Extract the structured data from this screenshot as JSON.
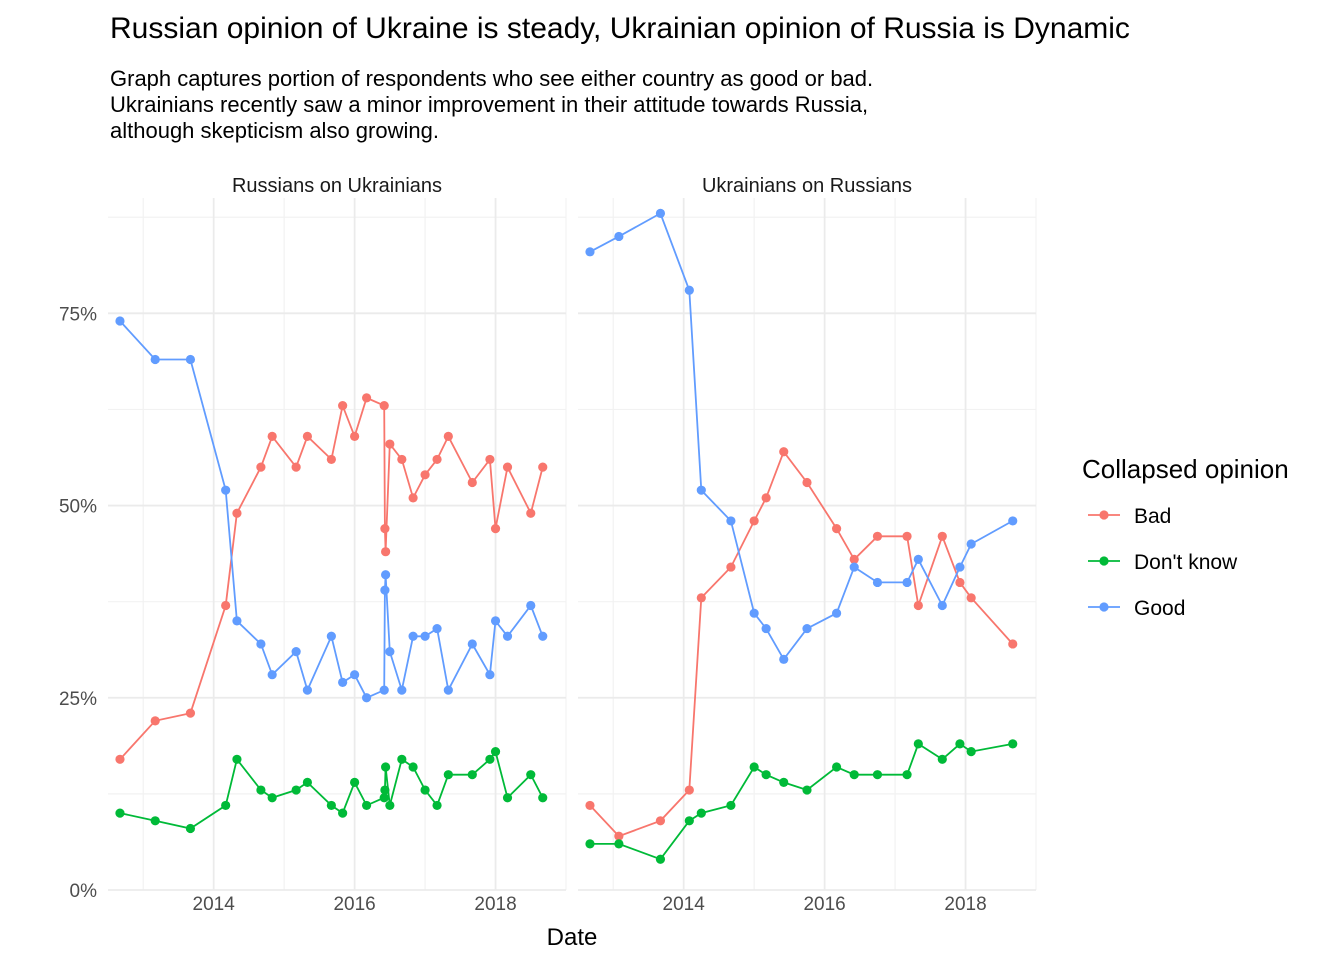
{
  "title": "Russian opinion of Ukraine is steady, Ukrainian opinion of Russia is Dynamic",
  "subtitle": "Graph captures portion of respondents who see either country as good or bad.\nUkrainians recently saw a minor improvement in their attitude towards Russia,\nalthough skepticism also growing.",
  "chart_data": {
    "type": "line",
    "xlabel": "Date",
    "ylabel": "",
    "xlim": [
      2012.5,
      2019.0
    ],
    "ylim": [
      0,
      0.9
    ],
    "x_ticks": [
      2014,
      2016,
      2018
    ],
    "x_tick_labels": [
      "2014",
      "2016",
      "2018"
    ],
    "y_ticks": [
      0,
      0.25,
      0.5,
      0.75
    ],
    "y_tick_labels": [
      "0%",
      "25%",
      "50%",
      "75%"
    ],
    "grid": true,
    "legend": {
      "title": "Collapsed opinion",
      "position": "right",
      "entries": [
        {
          "name": "Bad",
          "color": "#F8766D"
        },
        {
          "name": "Don't know",
          "color": "#00BA38"
        },
        {
          "name": "Good",
          "color": "#619CFF"
        }
      ]
    },
    "panels": [
      {
        "label": "Russians on Ukrainians",
        "series": [
          {
            "name": "Bad",
            "color": "#F8766D",
            "points": [
              [
                2012.67,
                0.17
              ],
              [
                2013.17,
                0.22
              ],
              [
                2013.67,
                0.23
              ],
              [
                2014.17,
                0.37
              ],
              [
                2014.33,
                0.49
              ],
              [
                2014.67,
                0.55
              ],
              [
                2014.83,
                0.59
              ],
              [
                2015.17,
                0.55
              ],
              [
                2015.33,
                0.59
              ],
              [
                2015.67,
                0.56
              ],
              [
                2015.83,
                0.63
              ],
              [
                2016.0,
                0.59
              ],
              [
                2016.17,
                0.64
              ],
              [
                2016.42,
                0.63
              ],
              [
                2016.43,
                0.47
              ],
              [
                2016.44,
                0.44
              ],
              [
                2016.5,
                0.58
              ],
              [
                2016.67,
                0.56
              ],
              [
                2016.83,
                0.51
              ],
              [
                2017.0,
                0.54
              ],
              [
                2017.17,
                0.56
              ],
              [
                2017.33,
                0.59
              ],
              [
                2017.67,
                0.53
              ],
              [
                2017.92,
                0.56
              ],
              [
                2018.0,
                0.47
              ],
              [
                2018.17,
                0.55
              ],
              [
                2018.5,
                0.49
              ],
              [
                2018.67,
                0.55
              ]
            ]
          },
          {
            "name": "Don't know",
            "color": "#00BA38",
            "points": [
              [
                2012.67,
                0.1
              ],
              [
                2013.17,
                0.09
              ],
              [
                2013.67,
                0.08
              ],
              [
                2014.17,
                0.11
              ],
              [
                2014.33,
                0.17
              ],
              [
                2014.67,
                0.13
              ],
              [
                2014.83,
                0.12
              ],
              [
                2015.17,
                0.13
              ],
              [
                2015.33,
                0.14
              ],
              [
                2015.67,
                0.11
              ],
              [
                2015.83,
                0.1
              ],
              [
                2016.0,
                0.14
              ],
              [
                2016.17,
                0.11
              ],
              [
                2016.42,
                0.12
              ],
              [
                2016.43,
                0.13
              ],
              [
                2016.44,
                0.16
              ],
              [
                2016.5,
                0.11
              ],
              [
                2016.67,
                0.17
              ],
              [
                2016.83,
                0.16
              ],
              [
                2017.0,
                0.13
              ],
              [
                2017.17,
                0.11
              ],
              [
                2017.33,
                0.15
              ],
              [
                2017.67,
                0.15
              ],
              [
                2017.92,
                0.17
              ],
              [
                2018.0,
                0.18
              ],
              [
                2018.17,
                0.12
              ],
              [
                2018.5,
                0.15
              ],
              [
                2018.67,
                0.12
              ]
            ]
          },
          {
            "name": "Good",
            "color": "#619CFF",
            "points": [
              [
                2012.67,
                0.74
              ],
              [
                2013.17,
                0.69
              ],
              [
                2013.67,
                0.69
              ],
              [
                2014.17,
                0.52
              ],
              [
                2014.33,
                0.35
              ],
              [
                2014.67,
                0.32
              ],
              [
                2014.83,
                0.28
              ],
              [
                2015.17,
                0.31
              ],
              [
                2015.33,
                0.26
              ],
              [
                2015.67,
                0.33
              ],
              [
                2015.83,
                0.27
              ],
              [
                2016.0,
                0.28
              ],
              [
                2016.17,
                0.25
              ],
              [
                2016.42,
                0.26
              ],
              [
                2016.43,
                0.39
              ],
              [
                2016.44,
                0.41
              ],
              [
                2016.5,
                0.31
              ],
              [
                2016.67,
                0.26
              ],
              [
                2016.83,
                0.33
              ],
              [
                2017.0,
                0.33
              ],
              [
                2017.17,
                0.34
              ],
              [
                2017.33,
                0.26
              ],
              [
                2017.67,
                0.32
              ],
              [
                2017.92,
                0.28
              ],
              [
                2018.0,
                0.35
              ],
              [
                2018.17,
                0.33
              ],
              [
                2018.5,
                0.37
              ],
              [
                2018.67,
                0.33
              ]
            ]
          }
        ]
      },
      {
        "label": "Ukrainians on Russians",
        "series": [
          {
            "name": "Bad",
            "color": "#F8766D",
            "points": [
              [
                2012.67,
                0.11
              ],
              [
                2013.08,
                0.07
              ],
              [
                2013.67,
                0.09
              ],
              [
                2014.08,
                0.13
              ],
              [
                2014.25,
                0.38
              ],
              [
                2014.67,
                0.42
              ],
              [
                2015.0,
                0.48
              ],
              [
                2015.17,
                0.51
              ],
              [
                2015.42,
                0.57
              ],
              [
                2015.75,
                0.53
              ],
              [
                2016.17,
                0.47
              ],
              [
                2016.42,
                0.43
              ],
              [
                2016.75,
                0.46
              ],
              [
                2017.17,
                0.46
              ],
              [
                2017.33,
                0.37
              ],
              [
                2017.67,
                0.46
              ],
              [
                2017.92,
                0.4
              ],
              [
                2018.08,
                0.38
              ],
              [
                2018.67,
                0.32
              ]
            ]
          },
          {
            "name": "Don't know",
            "color": "#00BA38",
            "points": [
              [
                2012.67,
                0.06
              ],
              [
                2013.08,
                0.06
              ],
              [
                2013.67,
                0.04
              ],
              [
                2014.08,
                0.09
              ],
              [
                2014.25,
                0.1
              ],
              [
                2014.67,
                0.11
              ],
              [
                2015.0,
                0.16
              ],
              [
                2015.17,
                0.15
              ],
              [
                2015.42,
                0.14
              ],
              [
                2015.75,
                0.13
              ],
              [
                2016.17,
                0.16
              ],
              [
                2016.42,
                0.15
              ],
              [
                2016.75,
                0.15
              ],
              [
                2017.17,
                0.15
              ],
              [
                2017.33,
                0.19
              ],
              [
                2017.67,
                0.17
              ],
              [
                2017.92,
                0.19
              ],
              [
                2018.08,
                0.18
              ],
              [
                2018.67,
                0.19
              ]
            ]
          },
          {
            "name": "Good",
            "color": "#619CFF",
            "points": [
              [
                2012.67,
                0.83
              ],
              [
                2013.08,
                0.85
              ],
              [
                2013.67,
                0.88
              ],
              [
                2014.08,
                0.78
              ],
              [
                2014.25,
                0.52
              ],
              [
                2014.67,
                0.48
              ],
              [
                2015.0,
                0.36
              ],
              [
                2015.17,
                0.34
              ],
              [
                2015.42,
                0.3
              ],
              [
                2015.75,
                0.34
              ],
              [
                2016.17,
                0.36
              ],
              [
                2016.42,
                0.42
              ],
              [
                2016.75,
                0.4
              ],
              [
                2017.17,
                0.4
              ],
              [
                2017.33,
                0.43
              ],
              [
                2017.67,
                0.37
              ],
              [
                2017.92,
                0.42
              ],
              [
                2018.08,
                0.45
              ],
              [
                2018.67,
                0.48
              ]
            ]
          }
        ]
      }
    ]
  }
}
